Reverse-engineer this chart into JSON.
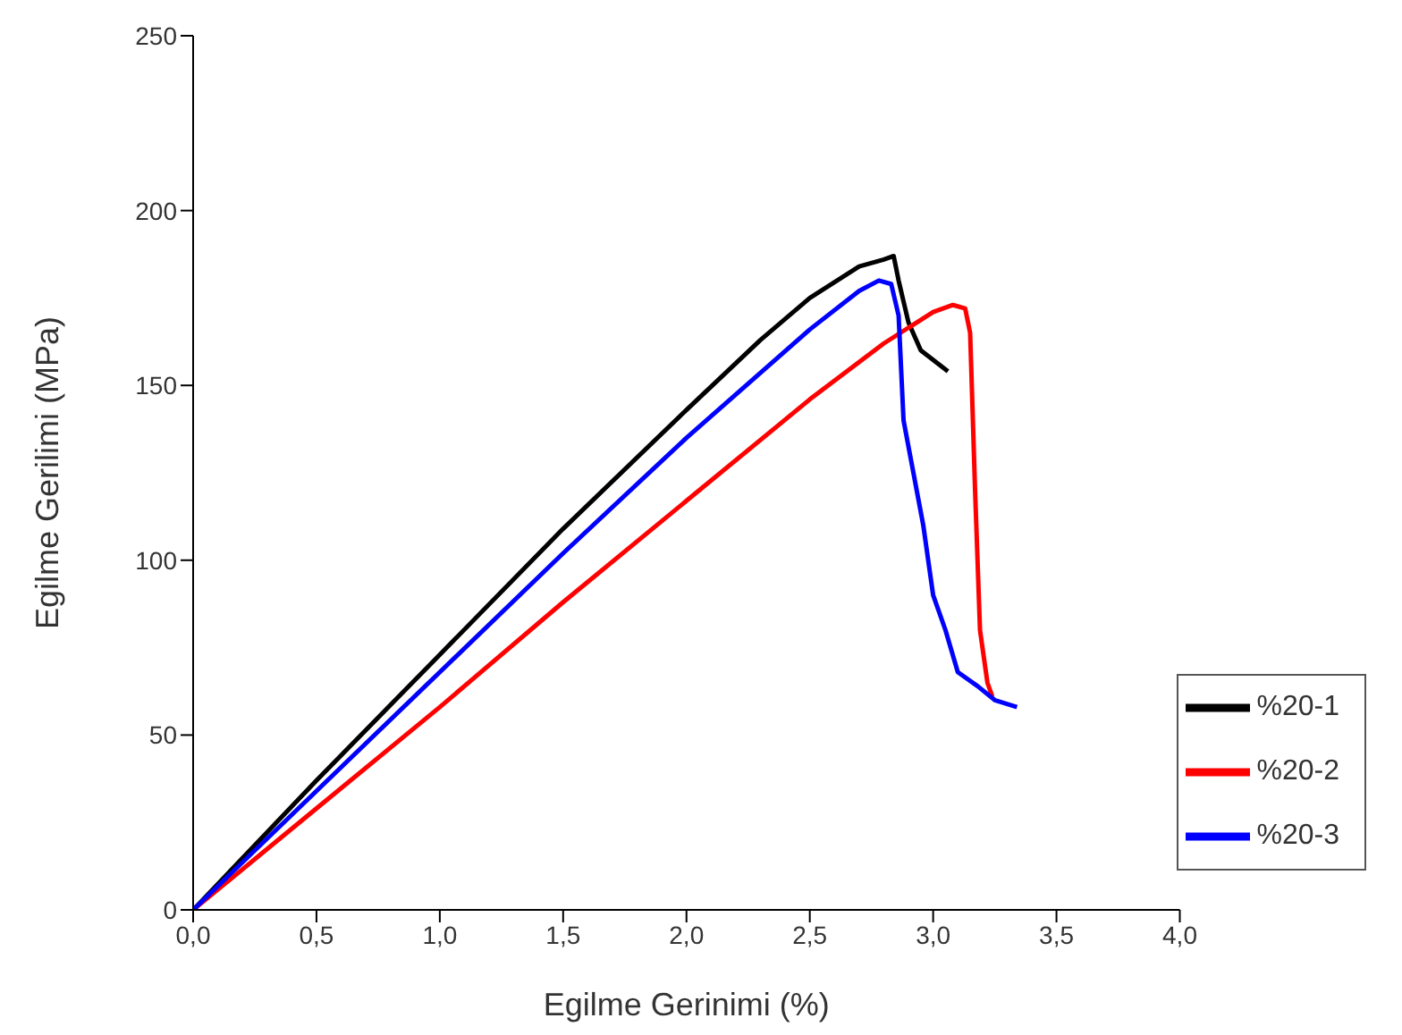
{
  "chart_data": {
    "type": "line",
    "xlabel": "Egilme Gerinimi (%)",
    "ylabel": "Egilme Gerilimi (MPa)",
    "xlim": [
      0,
      4
    ],
    "xticks": [
      {
        "value": 0,
        "label": "0,0"
      },
      {
        "value": 0.5,
        "label": "0,5"
      },
      {
        "value": 1,
        "label": "1,0"
      },
      {
        "value": 1.5,
        "label": "1,5"
      },
      {
        "value": 2,
        "label": "2,0"
      },
      {
        "value": 2.5,
        "label": "2,5"
      },
      {
        "value": 3,
        "label": "3,0"
      },
      {
        "value": 3.5,
        "label": "3,5"
      },
      {
        "value": 4,
        "label": "4,0"
      }
    ],
    "ylim": [
      0,
      250
    ],
    "yticks": [
      0,
      50,
      100,
      150,
      200,
      250
    ],
    "grid": false,
    "legend": "bottom right",
    "marker": "none",
    "line_style": "solid",
    "series": [
      {
        "name": "%20-1",
        "color": "#000000",
        "x": [
          0,
          0.5,
          1,
          1.5,
          2,
          2.3,
          2.5,
          2.7,
          2.8,
          2.84,
          2.86,
          2.9,
          2.95,
          3.06
        ],
        "values": [
          0,
          37,
          73,
          109,
          143,
          163,
          175,
          184,
          186,
          187,
          180,
          168,
          160,
          154
        ]
      },
      {
        "name": "%20-2",
        "color": "#ff0000",
        "x": [
          0,
          0.5,
          1,
          1.5,
          2,
          2.5,
          2.8,
          3,
          3.08,
          3.13,
          3.15,
          3.17,
          3.19,
          3.22,
          3.24
        ],
        "values": [
          0,
          29,
          58,
          88,
          117,
          146,
          162,
          171,
          173,
          172,
          165,
          120,
          80,
          65,
          61
        ]
      },
      {
        "name": "%20-3",
        "color": "#0000ff",
        "x": [
          0,
          0.5,
          1,
          1.5,
          2,
          2.5,
          2.7,
          2.78,
          2.83,
          2.86,
          2.88,
          2.92,
          2.96,
          2.98,
          3,
          3.05,
          3.1,
          3.18,
          3.25,
          3.34
        ],
        "values": [
          0,
          34,
          68,
          102,
          135,
          166,
          177,
          180,
          179,
          170,
          140,
          125,
          110,
          100,
          90,
          80,
          68,
          64,
          60,
          58
        ]
      }
    ]
  }
}
